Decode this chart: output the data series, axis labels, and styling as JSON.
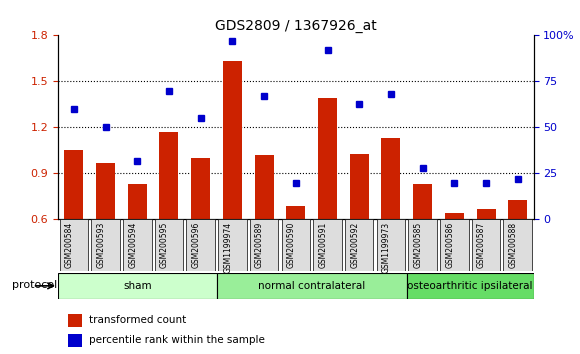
{
  "title": "GDS2809 / 1367926_at",
  "categories": [
    "GSM200584",
    "GSM200593",
    "GSM200594",
    "GSM200595",
    "GSM200596",
    "GSM1199974",
    "GSM200589",
    "GSM200590",
    "GSM200591",
    "GSM200592",
    "GSM1199973",
    "GSM200585",
    "GSM200586",
    "GSM200587",
    "GSM200588"
  ],
  "bar_values": [
    1.05,
    0.97,
    0.83,
    1.17,
    1.0,
    1.63,
    1.02,
    0.69,
    1.39,
    1.03,
    1.13,
    0.83,
    0.64,
    0.67,
    0.73
  ],
  "scatter_values": [
    60,
    50,
    32,
    70,
    55,
    97,
    67,
    20,
    92,
    63,
    68,
    28,
    20,
    20,
    22
  ],
  "bar_color": "#cc2200",
  "scatter_color": "#0000cc",
  "ylim_left": [
    0.6,
    1.8
  ],
  "ylim_right": [
    0,
    100
  ],
  "yticks_left": [
    0.6,
    0.9,
    1.2,
    1.5,
    1.8
  ],
  "yticks_right": [
    0,
    25,
    50,
    75,
    100
  ],
  "ytick_labels_right": [
    "0",
    "25",
    "50",
    "75",
    "100%"
  ],
  "groups": [
    {
      "label": "sham",
      "start": 0,
      "end": 5,
      "color": "#ccffcc"
    },
    {
      "label": "normal contralateral",
      "start": 5,
      "end": 11,
      "color": "#99ee99"
    },
    {
      "label": "osteoarthritic ipsilateral",
      "start": 11,
      "end": 15,
      "color": "#66dd66"
    }
  ],
  "protocol_label": "protocol",
  "legend_bar_label": "transformed count",
  "legend_scatter_label": "percentile rank within the sample",
  "background_color": "#ffffff",
  "plot_bg_color": "#ffffff",
  "grid_color": "#000000",
  "tick_label_bg": "#dddddd"
}
